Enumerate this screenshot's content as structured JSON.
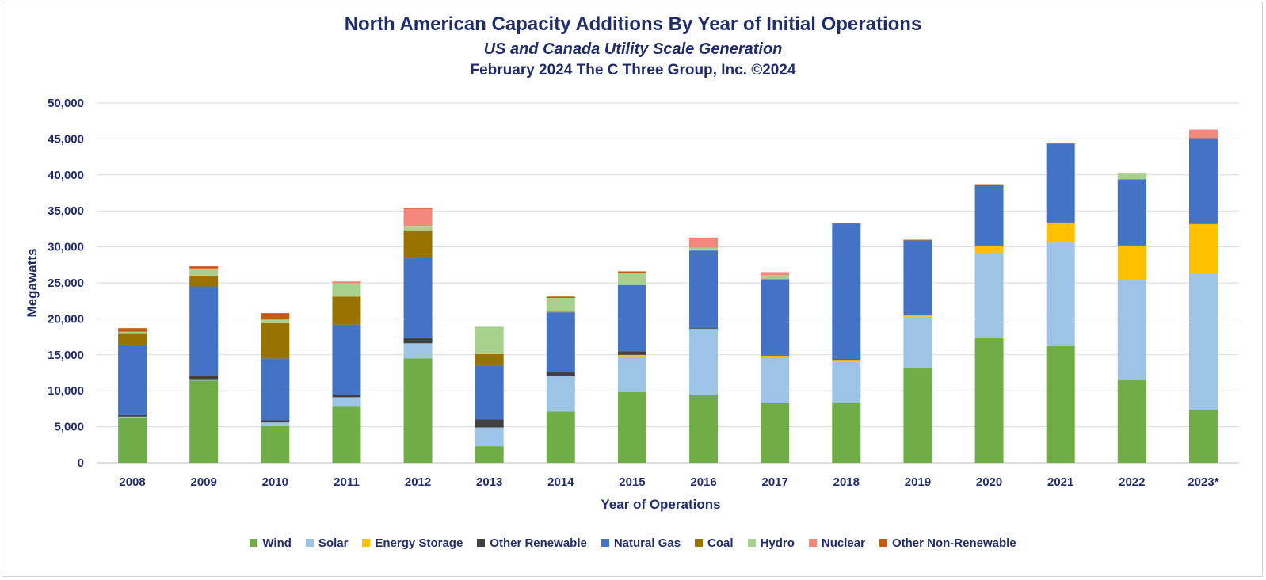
{
  "chart_data": {
    "type": "bar",
    "stacked": true,
    "title": "North American Capacity Additions By Year of Initial Operations",
    "subtitle": "US and Canada Utility Scale Generation",
    "subtitle2": "February 2024 The C Three Group, Inc. ©2024",
    "xlabel": "Year of Operations",
    "ylabel": "Megawatts",
    "ylim": [
      0,
      50000
    ],
    "yticks": [
      0,
      5000,
      10000,
      15000,
      20000,
      25000,
      30000,
      35000,
      40000,
      45000,
      50000
    ],
    "ytick_labels": [
      "0",
      "5,000",
      "10,000",
      "15,000",
      "20,000",
      "25,000",
      "30,000",
      "35,000",
      "40,000",
      "45,000",
      "50,000"
    ],
    "grid": true,
    "legend_position": "bottom",
    "categories": [
      "2008",
      "2009",
      "2010",
      "2011",
      "2012",
      "2013",
      "2014",
      "2015",
      "2016",
      "2017",
      "2018",
      "2019",
      "2020",
      "2021",
      "2022",
      "2023*"
    ],
    "series": [
      {
        "name": "Wind",
        "color": "#70ad47",
        "values": [
          6300,
          11400,
          5100,
          7800,
          14500,
          2300,
          7100,
          9800,
          9500,
          8300,
          8400,
          13200,
          17300,
          16200,
          11600,
          7400
        ]
      },
      {
        "name": "Solar",
        "color": "#9dc3e6",
        "values": [
          100,
          200,
          500,
          1300,
          2100,
          2600,
          4900,
          5000,
          9000,
          6400,
          5600,
          7100,
          11900,
          14400,
          13800,
          18900
        ]
      },
      {
        "name": "Energy Storage",
        "color": "#ffc000",
        "values": [
          0,
          0,
          0,
          0,
          0,
          0,
          0,
          200,
          100,
          200,
          300,
          200,
          900,
          2700,
          4700,
          6900
        ]
      },
      {
        "name": "Other Renewable",
        "color": "#404040",
        "values": [
          200,
          500,
          300,
          300,
          700,
          1100,
          600,
          500,
          100,
          100,
          100,
          100,
          100,
          100,
          100,
          100
        ]
      },
      {
        "name": "Natural Gas",
        "color": "#4472c4",
        "values": [
          9800,
          12400,
          8600,
          9800,
          11200,
          7500,
          8300,
          9200,
          10800,
          10500,
          18800,
          10300,
          8400,
          10900,
          9200,
          11800
        ]
      },
      {
        "name": "Coal",
        "color": "#997300",
        "values": [
          1600,
          1500,
          4900,
          3900,
          3800,
          1600,
          100,
          0,
          0,
          0,
          0,
          0,
          0,
          0,
          0,
          0
        ]
      },
      {
        "name": "Hydro",
        "color": "#a9d18e",
        "values": [
          200,
          1000,
          500,
          1800,
          600,
          3800,
          1900,
          1700,
          400,
          600,
          0,
          0,
          0,
          0,
          900,
          0
        ]
      },
      {
        "name": "Nuclear",
        "color": "#f4877c",
        "values": [
          0,
          0,
          0,
          300,
          2400,
          0,
          0,
          0,
          1400,
          400,
          0,
          0,
          0,
          0,
          0,
          1200
        ]
      },
      {
        "name": "Other Non-Renewable",
        "color": "#c55a11",
        "values": [
          500,
          300,
          900,
          0,
          100,
          0,
          200,
          200,
          0,
          0,
          100,
          100,
          100,
          100,
          0,
          0
        ]
      }
    ]
  }
}
